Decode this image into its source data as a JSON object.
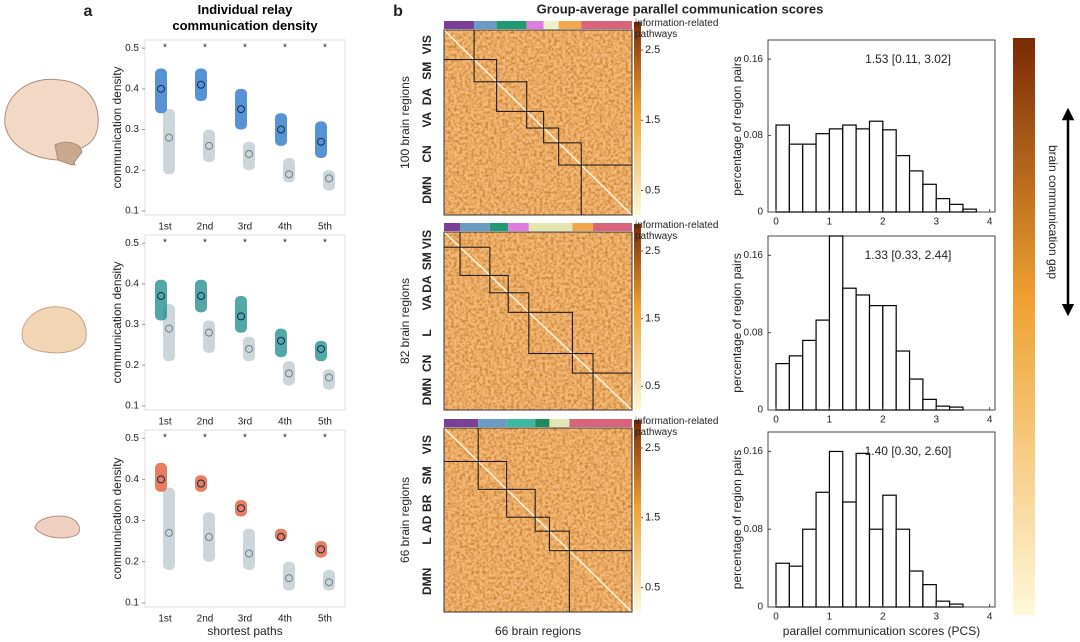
{
  "figure": {
    "panel_a": "a",
    "panel_b": "b",
    "title_a": "Individual relay communication density",
    "title_b": "Group-average parallel communication scores",
    "gap_label": "brain communication gap"
  },
  "chart_data": [
    {
      "type": "strip",
      "ylabel": "communication density",
      "marker": "*",
      "categories": [
        "1st",
        "2nd",
        "3rd",
        "4th",
        "5th"
      ],
      "ylim": [
        0.09,
        0.52
      ],
      "yticks": [
        0.1,
        0.2,
        0.3,
        0.4,
        0.5
      ],
      "series": [
        {
          "color": "#1f6fc6",
          "values": [
            0.4,
            0.41,
            0.35,
            0.3,
            0.27
          ],
          "low": [
            0.34,
            0.37,
            0.3,
            0.26,
            0.23
          ],
          "high": [
            0.45,
            0.45,
            0.4,
            0.34,
            0.32
          ]
        },
        {
          "color": "#b9c7cd",
          "values": [
            0.28,
            0.26,
            0.24,
            0.19,
            0.18
          ],
          "low": [
            0.19,
            0.22,
            0.2,
            0.17,
            0.15
          ],
          "high": [
            0.35,
            0.3,
            0.27,
            0.23,
            0.2
          ]
        }
      ]
    },
    {
      "type": "strip",
      "ylabel": "communication density",
      "marker": "*",
      "categories": [
        "1st",
        "2nd",
        "3rd",
        "4th",
        "5th"
      ],
      "ylim": [
        0.09,
        0.52
      ],
      "yticks": [
        0.1,
        0.2,
        0.3,
        0.4,
        0.5
      ],
      "series": [
        {
          "color": "#1a8a8a",
          "values": [
            0.37,
            0.37,
            0.32,
            0.26,
            0.24
          ],
          "low": [
            0.31,
            0.33,
            0.28,
            0.22,
            0.21
          ],
          "high": [
            0.41,
            0.41,
            0.37,
            0.29,
            0.26
          ]
        },
        {
          "color": "#b9c7cd",
          "values": [
            0.29,
            0.28,
            0.24,
            0.18,
            0.17
          ],
          "low": [
            0.21,
            0.23,
            0.21,
            0.15,
            0.14
          ],
          "high": [
            0.35,
            0.31,
            0.27,
            0.21,
            0.19
          ]
        }
      ]
    },
    {
      "type": "strip",
      "ylabel": "communication density",
      "xlabel": "shortest paths",
      "marker": "*",
      "categories": [
        "1st",
        "2nd",
        "3rd",
        "4th",
        "5th"
      ],
      "ylim": [
        0.09,
        0.52
      ],
      "yticks": [
        0.1,
        0.2,
        0.3,
        0.4,
        0.5
      ],
      "series": [
        {
          "color": "#e0522a",
          "values": [
            0.4,
            0.39,
            0.33,
            0.26,
            0.23
          ],
          "low": [
            0.37,
            0.37,
            0.31,
            0.25,
            0.21
          ],
          "high": [
            0.44,
            0.41,
            0.35,
            0.28,
            0.25
          ]
        },
        {
          "color": "#b9c7cd",
          "values": [
            0.27,
            0.26,
            0.22,
            0.16,
            0.15
          ],
          "low": [
            0.18,
            0.2,
            0.18,
            0.13,
            0.13
          ],
          "high": [
            0.38,
            0.32,
            0.28,
            0.2,
            0.18
          ]
        }
      ]
    },
    {
      "type": "heatmap",
      "ylabel": "100 brain regions",
      "colorbar_label": "information-related pathways",
      "clim": [
        0.15,
        2.9
      ],
      "cticks": [
        0.5,
        1.5,
        2.5
      ],
      "networks": [
        {
          "label": "VIS",
          "color": "#7b3f98",
          "regions": 16
        },
        {
          "label": "SM",
          "color": "#6a9bc3",
          "regions": 12
        },
        {
          "label": "DA",
          "color": "#1f9a73",
          "regions": 16
        },
        {
          "label": "VA",
          "color": "#e07be0",
          "regions": 9
        },
        {
          "label": null,
          "color": "#eef0c8",
          "regions": 8
        },
        {
          "label": "CN",
          "color": "#f0a84a",
          "regions": 12
        },
        {
          "label": "DMN",
          "color": "#d9647a",
          "regions": 27
        }
      ]
    },
    {
      "type": "heatmap",
      "ylabel": "82 brain regions",
      "colorbar_label": "information-related pathways",
      "clim": [
        0.15,
        2.9
      ],
      "cticks": [
        0.5,
        1.5,
        2.5
      ],
      "networks": [
        {
          "label": "VIS",
          "color": "#7b3f98",
          "regions": 7
        },
        {
          "label": "SM",
          "color": "#6a9bc3",
          "regions": 13
        },
        {
          "label": "DA",
          "color": "#1f9a73",
          "regions": 8
        },
        {
          "label": "VA",
          "color": "#e07be0",
          "regions": 9
        },
        {
          "label": "L",
          "color": "#e3e6b0",
          "regions": 19
        },
        {
          "label": "CN",
          "color": "#f0a84a",
          "regions": 9
        },
        {
          "label": "DMN",
          "color": "#d9647a",
          "regions": 17
        }
      ]
    },
    {
      "type": "heatmap",
      "ylabel": "66 brain regions",
      "xlabel": "66 brain regions",
      "colorbar_label": "information-related pathways",
      "clim": [
        0.15,
        2.9
      ],
      "cticks": [
        0.5,
        1.5,
        2.5
      ],
      "networks": [
        {
          "label": "VIS",
          "color": "#7b3f98",
          "regions": 12
        },
        {
          "label": "SM",
          "color": "#6a9bc3",
          "regions": 10
        },
        {
          "label": "BR",
          "color": "#3cb9a0",
          "regions": 10
        },
        {
          "label": "AD",
          "color": "#1f8a5a",
          "regions": 5
        },
        {
          "label": "L",
          "color": "#e3e6b0",
          "regions": 7
        },
        {
          "label": "DMN",
          "color": "#d9647a",
          "regions": 22
        }
      ]
    },
    {
      "type": "histogram",
      "annotation": "1.53 [0.11, 3.02]",
      "ylabel": "percentage of region pairs",
      "bins": [
        0,
        0.25,
        0.5,
        0.75,
        1,
        1.25,
        1.5,
        1.75,
        2,
        2.25,
        2.5,
        2.75,
        3,
        3.25,
        3.5,
        3.75,
        4
      ],
      "values": [
        0.091,
        0.071,
        0.071,
        0.082,
        0.087,
        0.091,
        0.087,
        0.095,
        0.086,
        0.059,
        0.043,
        0.029,
        0.014,
        0.008,
        0.003,
        0
      ],
      "xlim": [
        -0.15,
        4.1
      ],
      "ylim": [
        0,
        0.18
      ],
      "xticks": [
        0,
        1,
        2,
        3,
        4
      ],
      "yticks": [
        0,
        0.08,
        0.16
      ]
    },
    {
      "type": "histogram",
      "annotation": "1.33 [0.33, 2.44]",
      "ylabel": "percentage of region pairs",
      "bins": [
        0,
        0.25,
        0.5,
        0.75,
        1,
        1.25,
        1.5,
        1.75,
        2,
        2.25,
        2.5,
        2.75,
        3,
        3.25,
        3.5,
        3.75,
        4
      ],
      "values": [
        0.048,
        0.056,
        0.072,
        0.093,
        0.18,
        0.126,
        0.119,
        0.108,
        0.108,
        0.061,
        0.032,
        0.011,
        0.004,
        0.003,
        0,
        0
      ],
      "xlim": [
        -0.15,
        4.1
      ],
      "ylim": [
        0,
        0.18
      ],
      "xticks": [
        0,
        1,
        2,
        3,
        4
      ],
      "yticks": [
        0,
        0.08,
        0.16
      ]
    },
    {
      "type": "histogram",
      "annotation": "1.40 [0.30, 2.60]",
      "ylabel": "percentage of region pairs",
      "xlabel": "parallel communication scores (PCS)",
      "bins": [
        0,
        0.25,
        0.5,
        0.75,
        1,
        1.25,
        1.5,
        1.75,
        2,
        2.25,
        2.5,
        2.75,
        3,
        3.25,
        3.5,
        3.75,
        4
      ],
      "values": [
        0.045,
        0.042,
        0.08,
        0.118,
        0.16,
        0.108,
        0.158,
        0.08,
        0.115,
        0.08,
        0.037,
        0.023,
        0.006,
        0.003,
        0,
        0
      ],
      "xlim": [
        -0.15,
        4.1
      ],
      "ylim": [
        0,
        0.18
      ],
      "xticks": [
        0,
        1,
        2,
        3,
        4
      ],
      "yticks": [
        0,
        0.08,
        0.16
      ]
    }
  ]
}
